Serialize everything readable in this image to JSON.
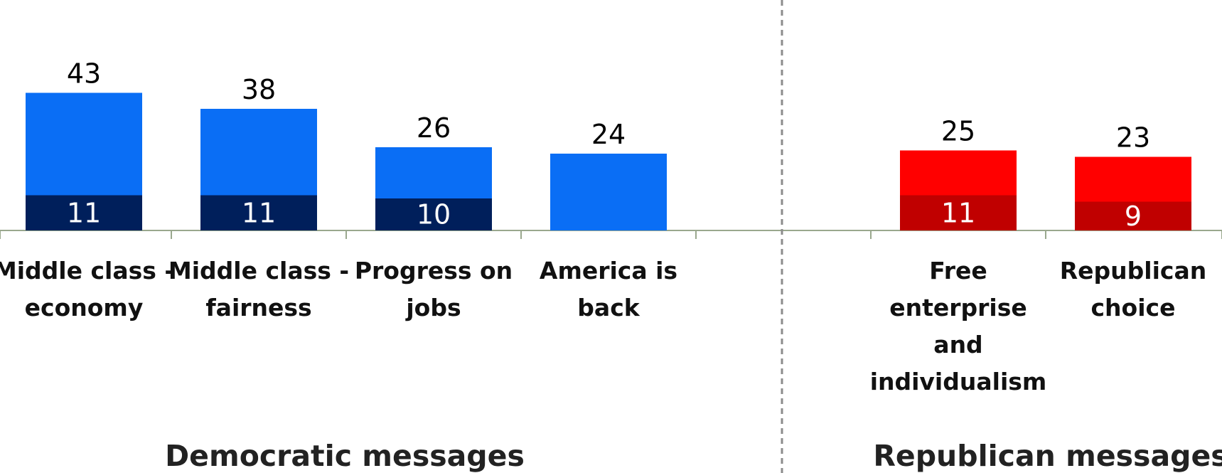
{
  "chart_data": {
    "type": "bar",
    "stacked": true,
    "categories": [
      "Middle class - economy",
      "Middle class - fairness",
      "Progress on jobs",
      "America is back",
      "Free enterprise and individualism",
      "Republican choice"
    ],
    "category_lines": [
      [
        "Middle class -",
        "economy"
      ],
      [
        "Middle class -",
        "fairness"
      ],
      [
        "Progress on",
        "jobs"
      ],
      [
        "America is",
        "back"
      ],
      [
        "Free",
        "enterprise",
        "and",
        "individualism"
      ],
      [
        "Republican",
        "choice"
      ]
    ],
    "totals": [
      43,
      38,
      26,
      24,
      25,
      23
    ],
    "inner_values": [
      11,
      11,
      10,
      null,
      11,
      9
    ],
    "total_labels": [
      "43",
      "38",
      "26",
      "24",
      "25",
      "23"
    ],
    "inner_labels": [
      "11",
      "11",
      "10",
      "",
      "11",
      "9"
    ],
    "groups": [
      {
        "label": "Democratic messages",
        "categories": [
          0,
          1,
          2,
          3
        ]
      },
      {
        "label": "Republican messages",
        "categories": [
          4,
          5
        ]
      }
    ],
    "colors": {
      "dem_total": "#0A6EF5",
      "dem_inner": "#001F5B",
      "rep_total": "#FF0000",
      "rep_inner": "#C00000",
      "axis": "#9AA88E",
      "divider": "#8C8C8C"
    },
    "grid": false,
    "legend": "none"
  }
}
